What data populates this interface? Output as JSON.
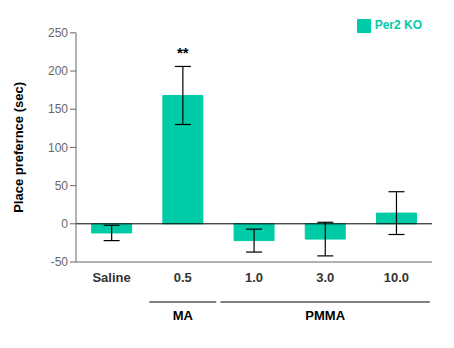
{
  "chart_data": {
    "type": "bar",
    "categories": [
      "Saline",
      "0.5",
      "1.0",
      "3.0",
      "10.0"
    ],
    "series": [
      {
        "name": "Per2 KO",
        "color": "#00CBA7",
        "values": [
          -12,
          168,
          -22,
          -20,
          14
        ],
        "errors": [
          10,
          38,
          15,
          22,
          28
        ]
      }
    ],
    "ylabel": "Place prefernce (sec)",
    "ylim": [
      -50,
      250
    ],
    "yticks": [
      -50,
      0,
      50,
      100,
      150,
      200,
      250
    ],
    "annotations": [
      {
        "text": "**",
        "category": "0.5"
      }
    ],
    "group_labels": [
      {
        "text": "MA",
        "categories": [
          "0.5"
        ]
      },
      {
        "text": "PMMA",
        "categories": [
          "1.0",
          "3.0",
          "10.0"
        ]
      }
    ],
    "legend": "upper right",
    "grid": false
  }
}
